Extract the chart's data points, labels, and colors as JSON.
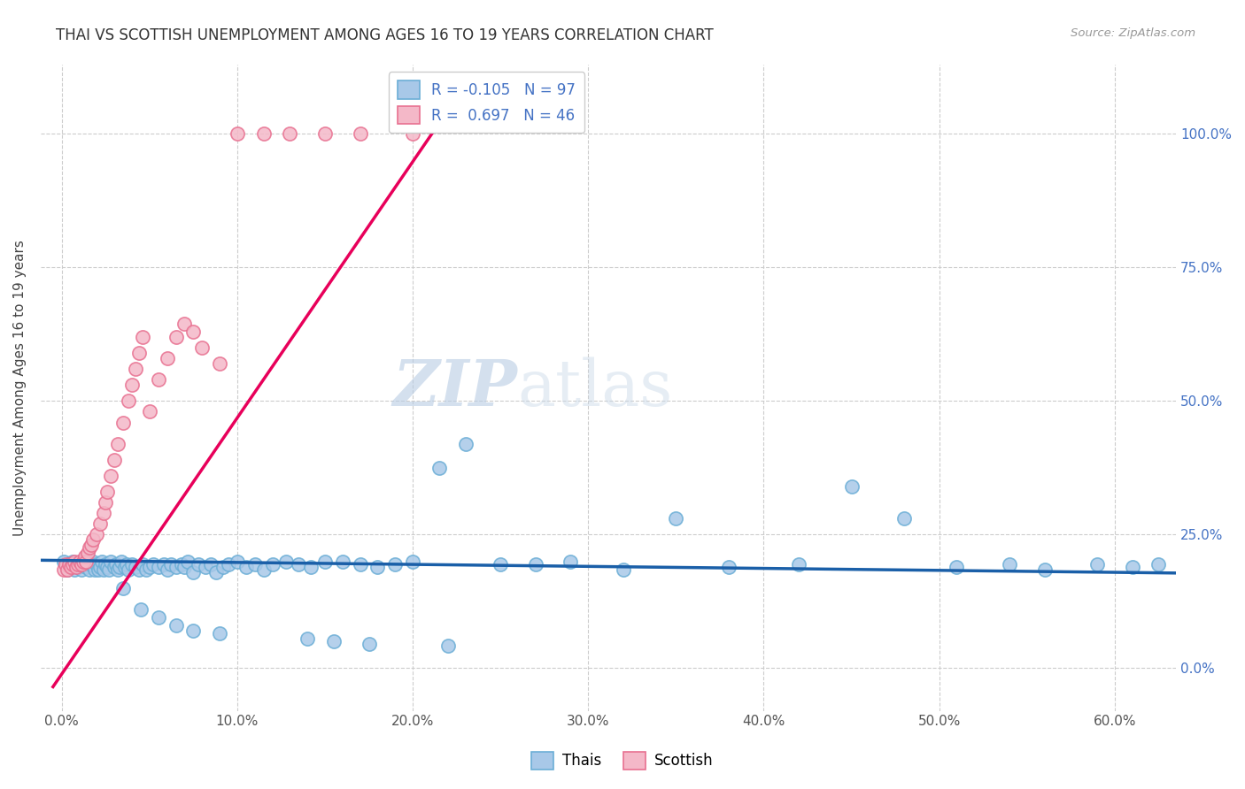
{
  "title": "THAI VS SCOTTISH UNEMPLOYMENT AMONG AGES 16 TO 19 YEARS CORRELATION CHART",
  "source": "Source: ZipAtlas.com",
  "ylabel": "Unemployment Among Ages 16 to 19 years",
  "xlim": [
    -0.012,
    0.635
  ],
  "ylim": [
    -0.08,
    1.13
  ],
  "xtick_vals": [
    0.0,
    0.1,
    0.2,
    0.3,
    0.4,
    0.5,
    0.6
  ],
  "xtick_labels": [
    "0.0%",
    "10.0%",
    "20.0%",
    "30.0%",
    "40.0%",
    "50.0%",
    "60.0%"
  ],
  "ytick_vals": [
    0.0,
    0.25,
    0.5,
    0.75,
    1.0
  ],
  "ytick_labels": [
    "0.0%",
    "25.0%",
    "50.0%",
    "75.0%",
    "100.0%"
  ],
  "thai_color": "#a8c8e8",
  "thai_edge_color": "#6baed6",
  "scottish_color": "#f4b8c8",
  "scottish_edge_color": "#e87090",
  "thai_line_color": "#1a5fa8",
  "scottish_line_color": "#e8005a",
  "legend_R_thai": "-0.105",
  "legend_N_thai": "97",
  "legend_R_scottish": "0.697",
  "legend_N_scottish": "46",
  "watermark_zip": "ZIP",
  "watermark_atlas": "atlas",
  "thai_x": [
    0.001,
    0.003,
    0.004,
    0.005,
    0.006,
    0.007,
    0.008,
    0.009,
    0.01,
    0.011,
    0.012,
    0.014,
    0.015,
    0.016,
    0.017,
    0.018,
    0.019,
    0.02,
    0.021,
    0.022,
    0.023,
    0.024,
    0.025,
    0.026,
    0.027,
    0.028,
    0.03,
    0.031,
    0.032,
    0.033,
    0.034,
    0.036,
    0.037,
    0.038,
    0.04,
    0.042,
    0.044,
    0.046,
    0.048,
    0.05,
    0.052,
    0.055,
    0.058,
    0.06,
    0.062,
    0.065,
    0.068,
    0.07,
    0.072,
    0.075,
    0.078,
    0.082,
    0.085,
    0.088,
    0.092,
    0.095,
    0.1,
    0.105,
    0.11,
    0.115,
    0.12,
    0.128,
    0.135,
    0.142,
    0.15,
    0.16,
    0.17,
    0.18,
    0.19,
    0.2,
    0.215,
    0.23,
    0.25,
    0.27,
    0.29,
    0.32,
    0.35,
    0.38,
    0.42,
    0.45,
    0.48,
    0.51,
    0.54,
    0.56,
    0.59,
    0.61,
    0.625,
    0.035,
    0.045,
    0.055,
    0.065,
    0.075,
    0.09,
    0.14,
    0.155,
    0.175,
    0.22
  ],
  "thai_y": [
    0.2,
    0.185,
    0.195,
    0.19,
    0.2,
    0.185,
    0.195,
    0.19,
    0.2,
    0.185,
    0.195,
    0.19,
    0.195,
    0.185,
    0.195,
    0.2,
    0.185,
    0.195,
    0.185,
    0.19,
    0.2,
    0.185,
    0.195,
    0.19,
    0.185,
    0.2,
    0.19,
    0.195,
    0.185,
    0.19,
    0.2,
    0.19,
    0.195,
    0.185,
    0.195,
    0.19,
    0.185,
    0.195,
    0.185,
    0.19,
    0.195,
    0.19,
    0.195,
    0.185,
    0.195,
    0.19,
    0.195,
    0.19,
    0.2,
    0.18,
    0.195,
    0.19,
    0.195,
    0.18,
    0.19,
    0.195,
    0.2,
    0.19,
    0.195,
    0.185,
    0.195,
    0.2,
    0.195,
    0.19,
    0.2,
    0.2,
    0.195,
    0.19,
    0.195,
    0.2,
    0.375,
    0.42,
    0.195,
    0.195,
    0.2,
    0.185,
    0.28,
    0.19,
    0.195,
    0.34,
    0.28,
    0.19,
    0.195,
    0.185,
    0.195,
    0.19,
    0.195,
    0.15,
    0.11,
    0.095,
    0.08,
    0.07,
    0.065,
    0.055,
    0.05,
    0.045,
    0.042
  ],
  "scottish_x": [
    0.001,
    0.002,
    0.003,
    0.004,
    0.005,
    0.006,
    0.007,
    0.008,
    0.009,
    0.01,
    0.011,
    0.012,
    0.013,
    0.014,
    0.015,
    0.016,
    0.017,
    0.018,
    0.02,
    0.022,
    0.024,
    0.025,
    0.026,
    0.028,
    0.03,
    0.032,
    0.035,
    0.038,
    0.04,
    0.042,
    0.044,
    0.046,
    0.05,
    0.055,
    0.06,
    0.065,
    0.07,
    0.075,
    0.08,
    0.09,
    0.1,
    0.115,
    0.13,
    0.15,
    0.17,
    0.2
  ],
  "scottish_y": [
    0.185,
    0.195,
    0.185,
    0.195,
    0.19,
    0.195,
    0.2,
    0.19,
    0.195,
    0.2,
    0.195,
    0.2,
    0.21,
    0.2,
    0.215,
    0.225,
    0.23,
    0.24,
    0.25,
    0.27,
    0.29,
    0.31,
    0.33,
    0.36,
    0.39,
    0.42,
    0.46,
    0.5,
    0.53,
    0.56,
    0.59,
    0.62,
    0.48,
    0.54,
    0.58,
    0.62,
    0.645,
    0.63,
    0.6,
    0.57,
    1.0,
    1.0,
    1.0,
    1.0,
    1.0,
    1.0
  ],
  "thai_line_x0": -0.012,
  "thai_line_x1": 0.635,
  "thai_line_y0": 0.202,
  "thai_line_y1": 0.178,
  "scottish_line_x0": -0.005,
  "scottish_line_x1": 0.215,
  "scottish_line_y0": -0.035,
  "scottish_line_y1": 1.02
}
